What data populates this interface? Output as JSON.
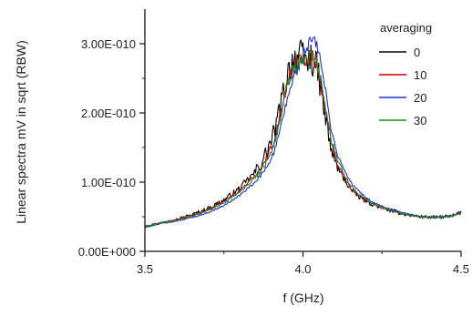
{
  "chart_data": {
    "type": "line",
    "title": "",
    "xlabel": "f (GHz)",
    "ylabel": "Linear spectra mV in sqrt (RBW)",
    "xlim": [
      3.5,
      4.5
    ],
    "ylim": [
      0,
      3.5e-10
    ],
    "x_ticks": [
      3.5,
      4.0,
      4.5
    ],
    "x_tick_labels": [
      "3.5",
      "4.0",
      "4.5"
    ],
    "y_ticks": [
      0,
      1e-10,
      2e-10,
      3e-10
    ],
    "y_tick_labels": [
      "0.00E+000",
      "1.00E-010",
      "2.00E-010",
      "3.00E-010"
    ],
    "grid": false,
    "legend": {
      "title": "averaging",
      "position": "top-right"
    },
    "x": [
      3.5,
      3.55,
      3.6,
      3.65,
      3.7,
      3.75,
      3.8,
      3.85,
      3.88,
      3.91,
      3.93,
      3.95,
      3.97,
      3.99,
      4.01,
      4.03,
      4.05,
      4.07,
      4.09,
      4.11,
      4.13,
      4.15,
      4.18,
      4.22,
      4.27,
      4.32,
      4.37,
      4.42,
      4.47,
      4.5
    ],
    "series": [
      {
        "name": "0",
        "color": "#000000",
        "noise": 0.05,
        "values": [
          3.6e-11,
          4.1e-11,
          4.6e-11,
          5.3e-11,
          6.2e-11,
          7.4e-11,
          9.1e-11,
          1.15e-10,
          1.38e-10,
          1.72e-10,
          2.1e-10,
          2.55e-10,
          2.8e-10,
          2.82e-10,
          2.75e-10,
          2.78e-10,
          2.55e-10,
          1.95e-10,
          1.45e-10,
          1.2e-10,
          1.05e-10,
          9e-11,
          7.8e-11,
          6.8e-11,
          6e-11,
          5.4e-11,
          5e-11,
          4.9e-11,
          5.1e-11,
          5.6e-11
        ]
      },
      {
        "name": "10",
        "color": "#cc0000",
        "noise": 0.022,
        "values": [
          3.6e-11,
          4.1e-11,
          4.6e-11,
          5.2e-11,
          6e-11,
          7.2e-11,
          8.8e-11,
          1.1e-10,
          1.3e-10,
          1.62e-10,
          2e-10,
          2.45e-10,
          2.68e-10,
          2.75e-10,
          2.8e-10,
          2.85e-10,
          2.6e-10,
          2.05e-10,
          1.55e-10,
          1.25e-10,
          1.08e-10,
          9.2e-11,
          7.9e-11,
          6.8e-11,
          6e-11,
          5.4e-11,
          5e-11,
          4.9e-11,
          5.1e-11,
          5.6e-11
        ]
      },
      {
        "name": "20",
        "color": "#1a33d9",
        "noise": 0.018,
        "values": [
          3.5e-11,
          4e-11,
          4.4e-11,
          4.9e-11,
          5.6e-11,
          6.6e-11,
          8.1e-11,
          1e-10,
          1.18e-10,
          1.45e-10,
          1.78e-10,
          2.2e-10,
          2.5e-10,
          2.72e-10,
          2.92e-10,
          3.08e-10,
          2.9e-10,
          2.35e-10,
          1.75e-10,
          1.38e-10,
          1.18e-10,
          1e-10,
          8.5e-11,
          7.1e-11,
          6.1e-11,
          5.5e-11,
          5e-11,
          4.9e-11,
          5e-11,
          5.6e-11
        ]
      },
      {
        "name": "30",
        "color": "#208a20",
        "noise": 0.02,
        "values": [
          3.6e-11,
          4.1e-11,
          4.5e-11,
          5.1e-11,
          5.9e-11,
          7e-11,
          8.6e-11,
          1.07e-10,
          1.26e-10,
          1.56e-10,
          1.94e-10,
          2.38e-10,
          2.62e-10,
          2.72e-10,
          2.78e-10,
          2.82e-10,
          2.62e-10,
          2.1e-10,
          1.6e-10,
          1.3e-10,
          1.12e-10,
          9.5e-11,
          8.1e-11,
          6.9e-11,
          6e-11,
          5.4e-11,
          5e-11,
          4.9e-11,
          5.1e-11,
          5.6e-11
        ]
      }
    ]
  }
}
